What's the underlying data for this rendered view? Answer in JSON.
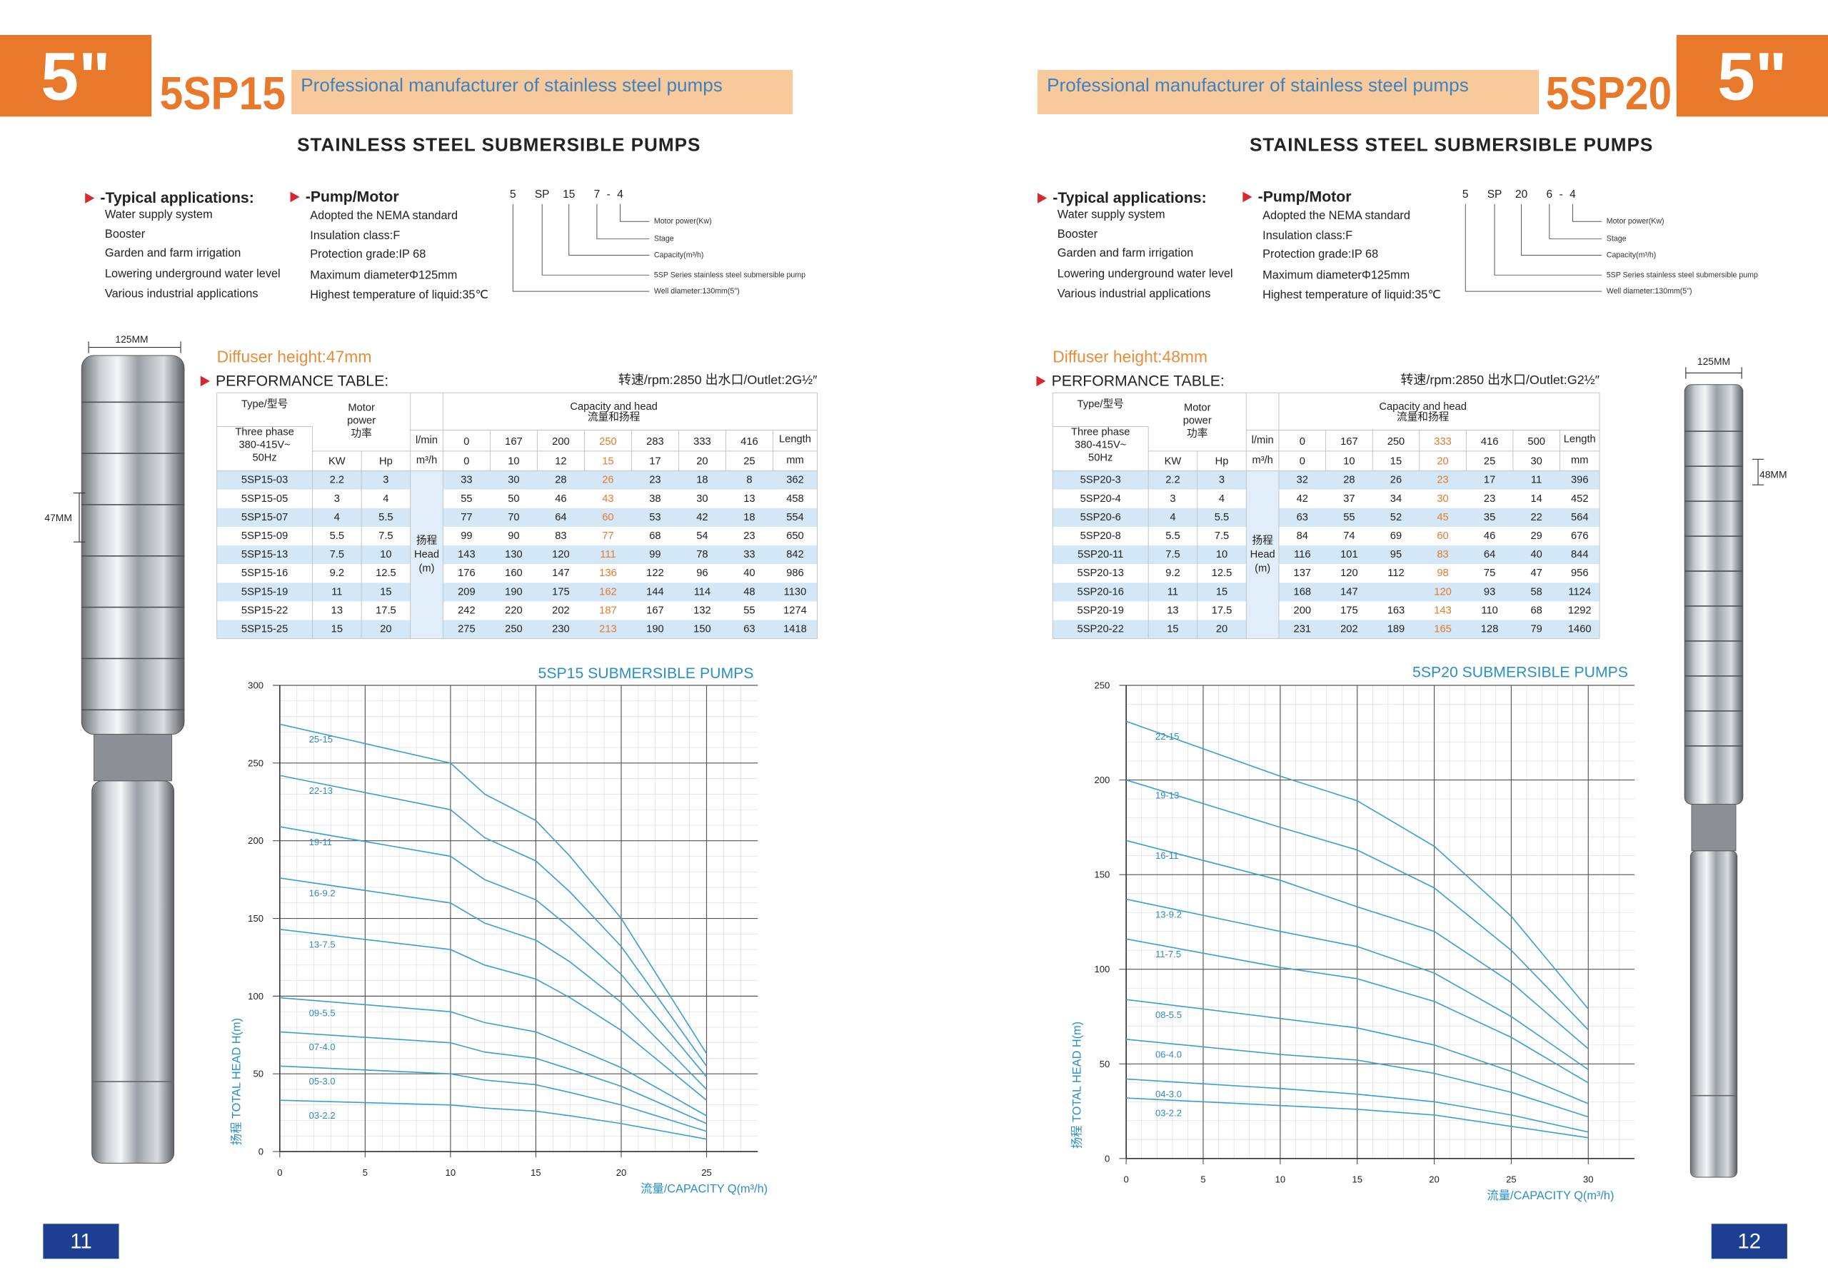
{
  "pages": [
    {
      "page_number": "11",
      "badge": "5\"",
      "model": "5SP15",
      "banner": "Professional manufacturer of stainless steel pumps",
      "subtitle": "STAINLESS STEEL SUBMERSIBLE PUMPS",
      "applications": {
        "title": "-Typical applications:",
        "items": [
          "Water supply system",
          "Booster",
          "Garden and farm irrigation",
          "Lowering underground water level",
          "Various industrial applications"
        ]
      },
      "pump_motor": {
        "title": "-Pump/Motor",
        "items": [
          "Adopted the NEMA standard",
          "Insulation class:F",
          "Protection grade:IP 68",
          "Maximum diameterΦ125mm",
          "Highest temperature of liquid:35℃"
        ]
      },
      "model_code": {
        "parts": [
          "5",
          "SP",
          "15",
          "7",
          "-",
          "4"
        ],
        "descriptions": [
          "Motor power(Kw)",
          "Stage",
          "Capacity(m³/h)",
          "5SP Series stainless steel submersible pump",
          "Well diameter:130mm(5\")"
        ]
      },
      "dimensions": {
        "diameter": "125MM",
        "diffuser": "47MM"
      },
      "diffuser_height": "Diffuser height:47mm",
      "performance_title": "PERFORMANCE TABLE:",
      "speed_outlet": "转速/rpm:2850  出水口/Outlet:2G½″",
      "table": {
        "type_header": "Type/型号",
        "power_header": [
          "Motor",
          "power",
          "功率"
        ],
        "capacity_header": [
          "Capacity and head",
          "流量和扬程"
        ],
        "supply": [
          "Three phase",
          "380-415V~",
          "50Hz"
        ],
        "kw_header": "KW",
        "hp_header": "Hp",
        "lpm_label": "l/min",
        "m3h_label": "m³/h",
        "head_label": [
          "扬程",
          "Head",
          "(m)"
        ],
        "length_header": "Length",
        "length_unit": "mm",
        "lpm": [
          0,
          167,
          200,
          250,
          283,
          333,
          416
        ],
        "m3h": [
          0,
          10,
          12,
          15,
          17,
          20,
          25
        ],
        "rows": [
          {
            "type": "5SP15-03",
            "kw": 2.2,
            "hp": 3,
            "heads": [
              33,
              30,
              28,
              26,
              23,
              18,
              8
            ],
            "length": 362
          },
          {
            "type": "5SP15-05",
            "kw": 3,
            "hp": 4,
            "heads": [
              55,
              50,
              46,
              43,
              38,
              30,
              13
            ],
            "length": 458
          },
          {
            "type": "5SP15-07",
            "kw": 4,
            "hp": 5.5,
            "heads": [
              77,
              70,
              64,
              60,
              53,
              42,
              18
            ],
            "length": 554
          },
          {
            "type": "5SP15-09",
            "kw": 5.5,
            "hp": 7.5,
            "heads": [
              99,
              90,
              83,
              77,
              68,
              54,
              23
            ],
            "length": 650
          },
          {
            "type": "5SP15-13",
            "kw": 7.5,
            "hp": 10,
            "heads": [
              143,
              130,
              120,
              111,
              99,
              78,
              33
            ],
            "length": 842
          },
          {
            "type": "5SP15-16",
            "kw": 9.2,
            "hp": 12.5,
            "heads": [
              176,
              160,
              147,
              136,
              122,
              96,
              40
            ],
            "length": 986
          },
          {
            "type": "5SP15-19",
            "kw": 11,
            "hp": 15,
            "heads": [
              209,
              190,
              175,
              162,
              144,
              114,
              48
            ],
            "length": 1130
          },
          {
            "type": "5SP15-22",
            "kw": 13,
            "hp": 17.5,
            "heads": [
              242,
              220,
              202,
              187,
              167,
              132,
              55
            ],
            "length": 1274
          },
          {
            "type": "5SP15-25",
            "kw": 15,
            "hp": 20,
            "heads": [
              275,
              250,
              230,
              213,
              190,
              150,
              63
            ],
            "length": 1418
          }
        ]
      },
      "chart_data": {
        "type": "line",
        "title": "5SP15 SUBMERSIBLE PUMPS",
        "y_label": "扬程 TOTAL HEAD H(m)",
        "x_label": "流量/CAPACITY Q(m³/h)",
        "color": "#3b9fd0",
        "grid": true,
        "xlim": [
          0,
          28
        ],
        "ylim": [
          0,
          300
        ],
        "xticks": [
          0,
          5,
          10,
          15,
          20,
          25
        ],
        "yticks": [
          0,
          50,
          100,
          150,
          200,
          250,
          300
        ],
        "x": [
          0,
          10,
          12,
          15,
          17,
          20,
          25
        ],
        "series": [
          {
            "name": "25-15",
            "values": [
              275,
              250,
              230,
              213,
              190,
              150,
              63
            ]
          },
          {
            "name": "22-13",
            "values": [
              242,
              220,
              202,
              187,
              167,
              132,
              55
            ]
          },
          {
            "name": "19-11",
            "values": [
              209,
              190,
              175,
              162,
              144,
              114,
              48
            ]
          },
          {
            "name": "16-9.2",
            "values": [
              176,
              160,
              147,
              136,
              122,
              96,
              40
            ]
          },
          {
            "name": "13-7.5",
            "values": [
              143,
              130,
              120,
              111,
              99,
              78,
              33
            ]
          },
          {
            "name": "09-5.5",
            "values": [
              99,
              90,
              83,
              77,
              68,
              54,
              23
            ]
          },
          {
            "name": "07-4.0",
            "values": [
              77,
              70,
              64,
              60,
              53,
              42,
              18
            ]
          },
          {
            "name": "05-3.0",
            "values": [
              55,
              50,
              46,
              43,
              38,
              30,
              13
            ]
          },
          {
            "name": "03-2.2",
            "values": [
              33,
              30,
              28,
              26,
              23,
              18,
              8
            ]
          }
        ]
      }
    },
    {
      "page_number": "12",
      "badge": "5\"",
      "model": "5SP20",
      "banner": "Professional manufacturer of stainless steel pumps",
      "subtitle": "STAINLESS STEEL SUBMERSIBLE PUMPS",
      "applications": {
        "title": "-Typical applications:",
        "items": [
          "Water supply system",
          "Booster",
          "Garden and farm irrigation",
          "Lowering underground water level",
          "Various industrial applications"
        ]
      },
      "pump_motor": {
        "title": "-Pump/Motor",
        "items": [
          "Adopted the NEMA standard",
          "Insulation class:F",
          "Protection grade:IP 68",
          "Maximum diameterΦ125mm",
          "Highest temperature of liquid:35℃"
        ]
      },
      "model_code": {
        "parts": [
          "5",
          "SP",
          "20",
          "6",
          "-",
          "4"
        ],
        "descriptions": [
          "Motor power(Kw)",
          "Stage",
          "Capacity(m³/h)",
          "5SP Series stainless steel submersible pump",
          "Well diameter:130mm(5\")"
        ]
      },
      "dimensions": {
        "diameter": "125MM",
        "diffuser": "48MM"
      },
      "diffuser_height": "Diffuser height:48mm",
      "performance_title": "PERFORMANCE TABLE:",
      "speed_outlet": "转速/rpm:2850  出水口/Outlet:G2½″",
      "table": {
        "type_header": "Type/型号",
        "power_header": [
          "Motor",
          "power",
          "功率"
        ],
        "capacity_header": [
          "Capacity and head",
          "流量和扬程"
        ],
        "supply": [
          "Three phase",
          "380-415V~",
          "50Hz"
        ],
        "kw_header": "KW",
        "hp_header": "Hp",
        "lpm_label": "l/min",
        "m3h_label": "m³/h",
        "head_label": [
          "扬程",
          "Head",
          "(m)"
        ],
        "length_header": "Length",
        "length_unit": "mm",
        "lpm": [
          0,
          167,
          250,
          333,
          416,
          500
        ],
        "m3h": [
          0,
          10,
          15,
          20,
          25,
          30
        ],
        "rows": [
          {
            "type": "5SP20-3",
            "kw": 2.2,
            "hp": 3,
            "heads": [
              32,
              28,
              26,
              23,
              17,
              11
            ],
            "length": 396
          },
          {
            "type": "5SP20-4",
            "kw": 3,
            "hp": 4,
            "heads": [
              42,
              37,
              34,
              30,
              23,
              14
            ],
            "length": 452
          },
          {
            "type": "5SP20-6",
            "kw": 4,
            "hp": 5.5,
            "heads": [
              63,
              55,
              52,
              45,
              35,
              22
            ],
            "length": 564
          },
          {
            "type": "5SP20-8",
            "kw": 5.5,
            "hp": 7.5,
            "heads": [
              84,
              74,
              69,
              60,
              46,
              29
            ],
            "length": 676
          },
          {
            "type": "5SP20-11",
            "kw": 7.5,
            "hp": 10,
            "heads": [
              116,
              101,
              95,
              83,
              64,
              40
            ],
            "length": 844
          },
          {
            "type": "5SP20-13",
            "kw": 9.2,
            "hp": 12.5,
            "heads": [
              137,
              120,
              112,
              98,
              75,
              47
            ],
            "length": 956
          },
          {
            "type": "5SP20-16",
            "kw": 11,
            "hp": 15,
            "heads": [
              168,
              147,
              null,
              120,
              93,
              58
            ],
            "length": 1124
          },
          {
            "type": "5SP20-19",
            "kw": 13,
            "hp": 17.5,
            "heads": [
              200,
              175,
              163,
              143,
              110,
              68
            ],
            "length": 1292
          },
          {
            "type": "5SP20-22",
            "kw": 15,
            "hp": 20,
            "heads": [
              231,
              202,
              189,
              165,
              128,
              79
            ],
            "length": 1460
          }
        ]
      },
      "chart_data": {
        "type": "line",
        "title": "5SP20 SUBMERSIBLE PUMPS",
        "y_label": "扬程 TOTAL HEAD H(m)",
        "x_label": "流量/CAPACITY Q(m³/h)",
        "color": "#3b9fd0",
        "grid": true,
        "xlim": [
          0,
          33
        ],
        "ylim": [
          0,
          250
        ],
        "xticks": [
          0,
          5,
          10,
          15,
          20,
          25,
          30
        ],
        "yticks": [
          0,
          50,
          100,
          150,
          200,
          250
        ],
        "x": [
          0,
          10,
          15,
          20,
          25,
          30
        ],
        "series": [
          {
            "name": "22-15",
            "values": [
              231,
              202,
              189,
              165,
              128,
              79
            ]
          },
          {
            "name": "19-13",
            "values": [
              200,
              175,
              163,
              143,
              110,
              68
            ]
          },
          {
            "name": "16-11",
            "values": [
              168,
              147,
              133,
              120,
              93,
              58
            ]
          },
          {
            "name": "13-9.2",
            "values": [
              137,
              120,
              112,
              98,
              75,
              47
            ]
          },
          {
            "name": "11-7.5",
            "values": [
              116,
              101,
              95,
              83,
              64,
              40
            ]
          },
          {
            "name": "08-5.5",
            "values": [
              84,
              74,
              69,
              60,
              46,
              29
            ]
          },
          {
            "name": "06-4.0",
            "values": [
              63,
              55,
              52,
              45,
              35,
              22
            ]
          },
          {
            "name": "04-3.0",
            "values": [
              42,
              37,
              34,
              30,
              23,
              14
            ]
          },
          {
            "name": "03-2.2",
            "values": [
              32,
              28,
              26,
              23,
              17,
              11
            ]
          }
        ]
      }
    }
  ]
}
